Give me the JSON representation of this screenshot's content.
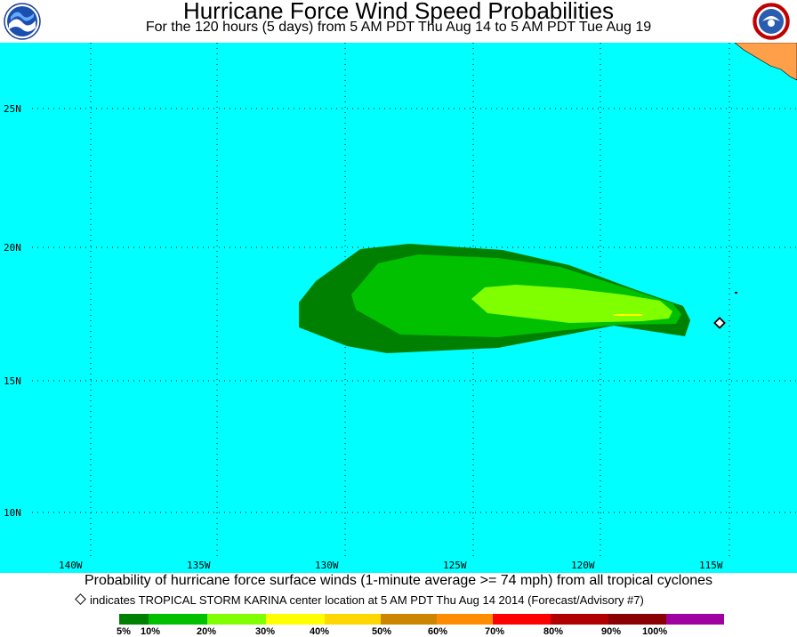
{
  "title": "Hurricane Force Wind Speed Probabilities",
  "subtitle": "For the 120 hours (5 days) from 5 AM PDT Thu Aug 14 to 5 AM PDT Tue Aug 19",
  "logos": {
    "left": "noaa-logo",
    "right": "national-weather-service-logo"
  },
  "map": {
    "ocean_color": "#00ffff",
    "land_color": "#ff9f4a",
    "lat_labels": [
      "25N",
      "20N",
      "15N",
      "10N"
    ],
    "lon_labels": [
      "140W",
      "135W",
      "130W",
      "125W",
      "120W",
      "115W"
    ],
    "storm_marker": "diamond"
  },
  "caption": "Probability of hurricane force surface winds (1-minute average >= 74 mph) from all tropical cyclones",
  "note": "indicates TROPICAL STORM KARINA center location at 5 AM PDT Thu Aug 14 2014 (Forecast/Advisory #7)",
  "legend": {
    "colors": [
      "#008000",
      "#00c000",
      "#7fff00",
      "#ffff00",
      "#ffd700",
      "#cd8500",
      "#ff8c00",
      "#ff0000",
      "#b00000",
      "#8b0000",
      "#a000a0"
    ],
    "labels": [
      "5%",
      "10%",
      "20%",
      "30%",
      "40%",
      "50%",
      "60%",
      "70%",
      "80%",
      "90%",
      "100%"
    ]
  }
}
